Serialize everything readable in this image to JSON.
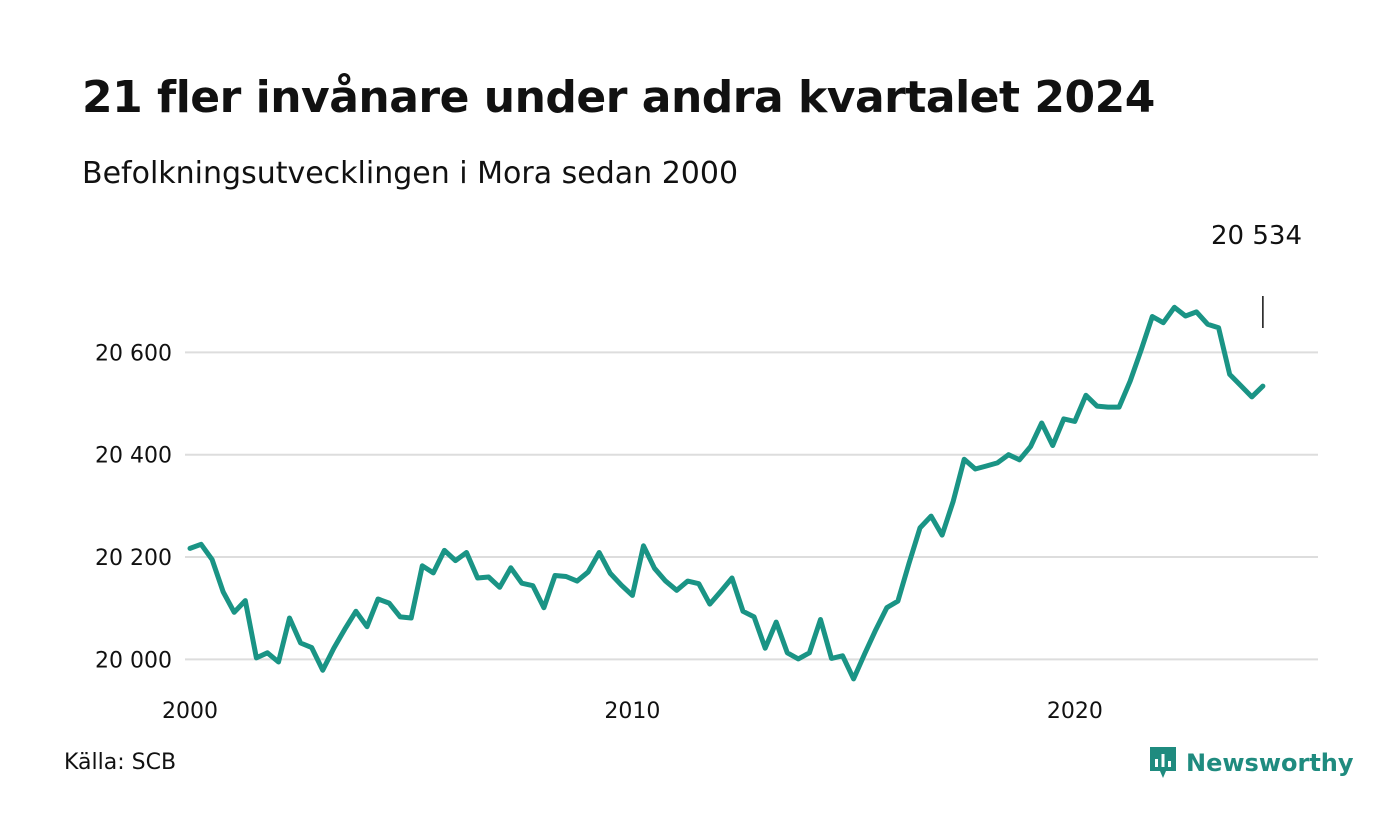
{
  "title": "21 fler invånare under andra kvartalet 2024",
  "subtitle": "Befolkningsutvecklingen i Mora sedan 2000",
  "source": "Källa: SCB",
  "brand": "Newsworthy",
  "colors": {
    "line": "#1a9485",
    "grid": "#dddddd",
    "brand": "#1f8b7f"
  },
  "chart_data": {
    "type": "line",
    "x_unit": "quarter",
    "x_start": "2000-Q1",
    "values": [
      20217,
      20225,
      20195,
      20132,
      20092,
      20115,
      20003,
      20013,
      19995,
      20081,
      20032,
      20023,
      19979,
      20022,
      20059,
      20094,
      20064,
      20118,
      20110,
      20083,
      20081,
      20183,
      20169,
      20213,
      20193,
      20209,
      20159,
      20161,
      20141,
      20179,
      20149,
      20144,
      20101,
      20164,
      20162,
      20153,
      20171,
      20209,
      20168,
      20145,
      20125,
      20222,
      20178,
      20153,
      20135,
      20153,
      20148,
      20108,
      20133,
      20159,
      20094,
      20083,
      20022,
      20073,
      20013,
      20001,
      20013,
      20078,
      20002,
      20007,
      19962,
      20011,
      20058,
      20101,
      20114,
      20187,
      20257,
      20280,
      20243,
      20309,
      20391,
      20372,
      20378,
      20384,
      20400,
      20390,
      20416,
      20462,
      20418,
      20470,
      20465,
      20516,
      20495,
      20493,
      20493,
      20544,
      20605,
      20670,
      20658,
      20688,
      20671,
      20679,
      20655,
      20648,
      20557,
      20535,
      20513,
      20534
    ],
    "x_ticks": [
      {
        "label": "2000",
        "year": 2000
      },
      {
        "label": "2010",
        "year": 2010
      },
      {
        "label": "2020",
        "year": 2020
      }
    ],
    "y_ticks": [
      {
        "label": "20 000",
        "value": 20000
      },
      {
        "label": "20 200",
        "value": 20200
      },
      {
        "label": "20 400",
        "value": 20400
      },
      {
        "label": "20 600",
        "value": 20600
      }
    ],
    "ylim": [
      19950,
      20800
    ],
    "xlim": [
      2000,
      2024.75
    ],
    "grid": true,
    "annotation": {
      "label": "20 534",
      "value": 20534
    }
  }
}
